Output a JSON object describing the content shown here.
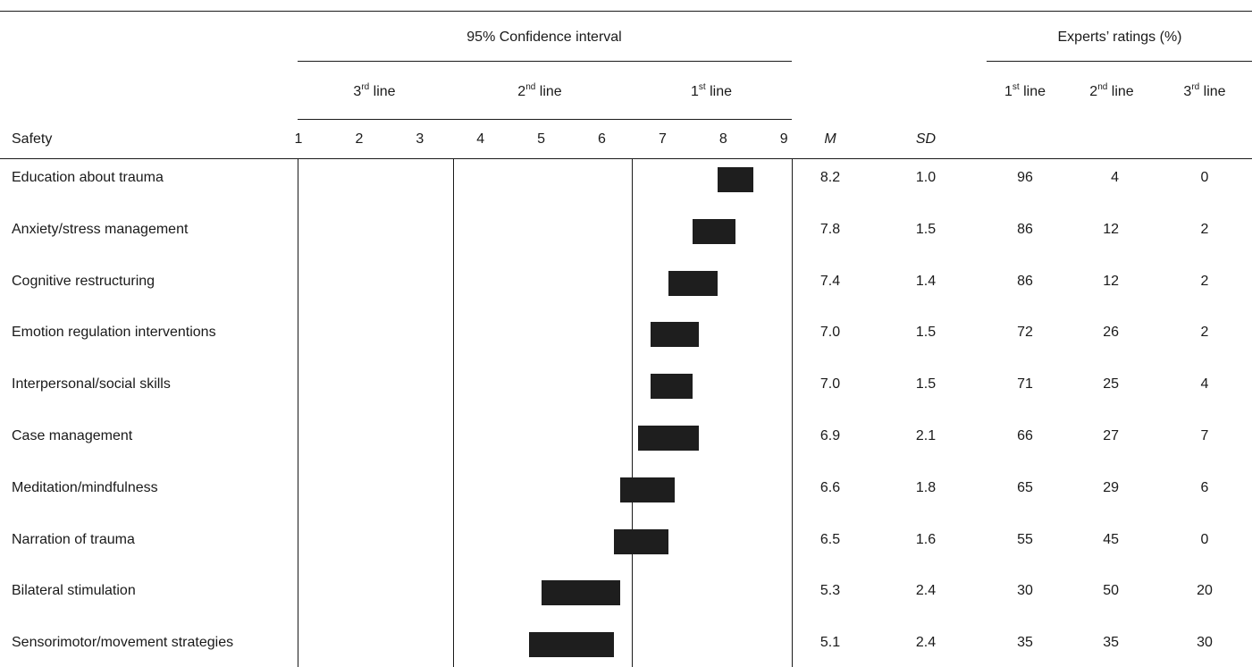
{
  "colors": {
    "bar": "#1e1e1e",
    "rule": "#1a1a1a",
    "text": "#1a1a1a"
  },
  "header": {
    "ci_title": "95% Confidence interval",
    "experts_title": "Experts’ ratings (%)",
    "line_groups": [
      {
        "num": "3",
        "sup": "rd",
        "word": " line"
      },
      {
        "num": "2",
        "sup": "nd",
        "word": " line"
      },
      {
        "num": "1",
        "sup": "st",
        "word": " line"
      }
    ],
    "experts_cols": [
      {
        "num": "1",
        "sup": "st",
        "word": " line"
      },
      {
        "num": "2",
        "sup": "nd",
        "word": " line"
      },
      {
        "num": "3",
        "sup": "rd",
        "word": " line"
      }
    ],
    "section_label": "Safety",
    "scale_ticks": [
      "1",
      "2",
      "3",
      "4",
      "5",
      "6",
      "7",
      "8",
      "9"
    ],
    "mean_label": "M",
    "sd_label": "SD"
  },
  "chart_data": {
    "type": "bar",
    "title": "95% Confidence interval",
    "xlim": [
      1,
      9
    ],
    "categories": [
      "Education about trauma",
      "Anxiety/stress management",
      "Cognitive restructuring",
      "Emotion regulation interventions",
      "Interpersonal/social skills",
      "Case management",
      "Meditation/mindfulness",
      "Narration of trauma",
      "Bilateral stimulation",
      "Sensorimotor/movement strategies"
    ],
    "intervals": [
      [
        7.9,
        8.5
      ],
      [
        7.5,
        8.2
      ],
      [
        7.1,
        7.9
      ],
      [
        6.8,
        7.6
      ],
      [
        6.8,
        7.5
      ],
      [
        6.6,
        7.6
      ],
      [
        6.3,
        7.2
      ],
      [
        6.2,
        7.1
      ],
      [
        5.0,
        6.3
      ],
      [
        4.8,
        6.2
      ]
    ]
  },
  "rows": [
    {
      "label": "Education about trauma",
      "m": "8.2",
      "sd": "1.0",
      "first": "96",
      "second": "4",
      "third": "0"
    },
    {
      "label": "Anxiety/stress management",
      "m": "7.8",
      "sd": "1.5",
      "first": "86",
      "second": "12",
      "third": "2"
    },
    {
      "label": "Cognitive restructuring",
      "m": "7.4",
      "sd": "1.4",
      "first": "86",
      "second": "12",
      "third": "2"
    },
    {
      "label": "Emotion regulation interventions",
      "m": "7.0",
      "sd": "1.5",
      "first": "72",
      "second": "26",
      "third": "2"
    },
    {
      "label": "Interpersonal/social skills",
      "m": "7.0",
      "sd": "1.5",
      "first": "71",
      "second": "25",
      "third": "4"
    },
    {
      "label": "Case management",
      "m": "6.9",
      "sd": "2.1",
      "first": "66",
      "second": "27",
      "third": "7"
    },
    {
      "label": "Meditation/mindfulness",
      "m": "6.6",
      "sd": "1.8",
      "first": "65",
      "second": "29",
      "third": "6"
    },
    {
      "label": "Narration of trauma",
      "m": "6.5",
      "sd": "1.6",
      "first": "55",
      "second": "45",
      "third": "0"
    },
    {
      "label": "Bilateral stimulation",
      "m": "5.3",
      "sd": "2.4",
      "first": "30",
      "second": "50",
      "third": "20"
    },
    {
      "label": "Sensorimotor/movement strategies",
      "m": "5.1",
      "sd": "2.4",
      "first": "35",
      "second": "35",
      "third": "30"
    }
  ]
}
